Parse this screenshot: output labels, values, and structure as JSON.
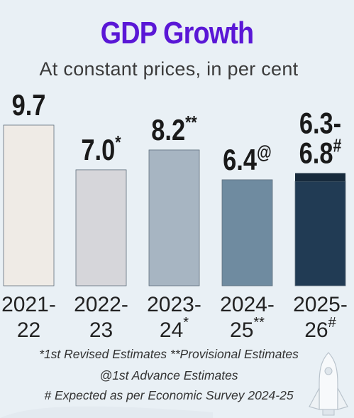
{
  "chart_data": {
    "type": "bar",
    "title": "GDP Growth",
    "subtitle": "At constant prices, in per cent",
    "xlabel": "",
    "ylabel": "",
    "ylim": [
      0,
      10
    ],
    "categories": [
      "2021-22",
      "2022-23",
      "2023-24",
      "2024-25",
      "2025-26"
    ],
    "category_lines": [
      [
        "2021-",
        "22"
      ],
      [
        "2022-",
        "23"
      ],
      [
        "2023-",
        "24"
      ],
      [
        "2024-",
        "25"
      ],
      [
        "2025-",
        "26"
      ]
    ],
    "category_marks": [
      "",
      "",
      "*",
      "**",
      "#"
    ],
    "values": [
      9.7,
      7.0,
      8.2,
      6.4,
      6.3
    ],
    "ranges": [
      null,
      null,
      null,
      null,
      [
        6.3,
        6.8
      ]
    ],
    "label_lines": [
      [
        "9.7"
      ],
      [
        "7.0"
      ],
      [
        "8.2"
      ],
      [
        "6.4"
      ],
      [
        "6.3-",
        "6.8"
      ]
    ],
    "label_marks": [
      "",
      "*",
      "**",
      "@",
      "#"
    ],
    "colors": [
      "#efebe6",
      "#d6d6da",
      "#a7b5c2",
      "#6f8ba0",
      "#213b54"
    ],
    "range_cap_color": "#172a3c",
    "grid": false,
    "legend": "none"
  },
  "footnotes": [
    "*1st Revised Estimates **Provisional Estimates",
    "@1st Advance Estimates",
    "# Expected as per Economic Survey 2024-25"
  ]
}
